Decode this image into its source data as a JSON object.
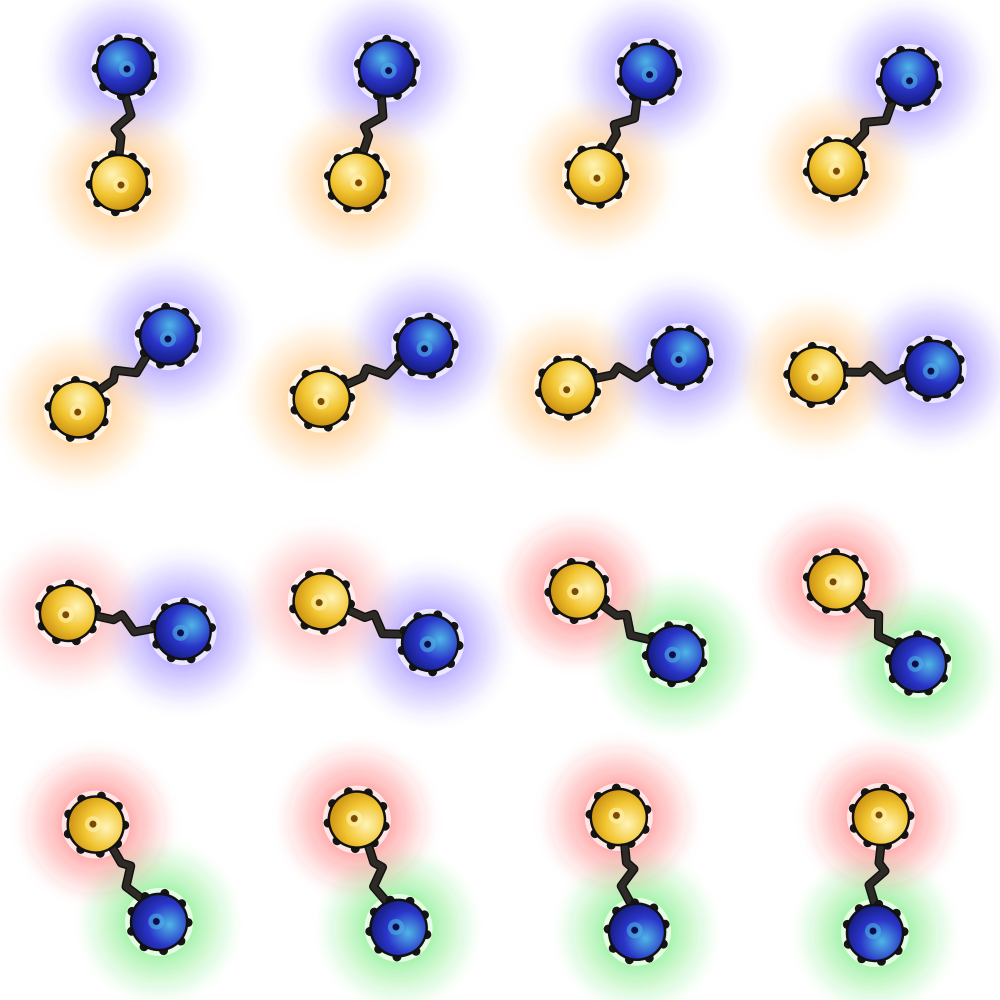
{
  "sheet": {
    "rows": 4,
    "columns": 4,
    "frame_count": 16,
    "background": "#ffffff"
  },
  "orbs": {
    "warm_orb": {
      "fill": "#f2c531",
      "highlight": "#fff4b8",
      "shade": "#c98e10",
      "core": "#7a4b00"
    },
    "cool_orb": {
      "fill": "#2a35c9",
      "highlight": "#4fb6e6",
      "shade": "#141a7a",
      "core": "#0d0f4d"
    },
    "spike_color": "#151515",
    "tether_color": "#2e2b27"
  },
  "glow_colors": {
    "warm_orange": "#ff9a1f",
    "cool_violet": "#5b3dff",
    "pink": "#ff7070",
    "red": "#ff2a2a",
    "green": "#22e02a"
  },
  "frames": [
    {
      "index": 1,
      "sprite": "dumbbell-orbs",
      "rotation_deg": 0,
      "warm_glow": "warm_orange",
      "cool_glow": "cool_violet"
    },
    {
      "index": 2,
      "sprite": "dumbbell-orbs",
      "rotation_deg": 12,
      "warm_glow": "warm_orange",
      "cool_glow": "cool_violet"
    },
    {
      "index": 3,
      "sprite": "dumbbell-orbs",
      "rotation_deg": 24,
      "warm_glow": "warm_orange",
      "cool_glow": "cool_violet"
    },
    {
      "index": 4,
      "sprite": "dumbbell-orbs",
      "rotation_deg": 36,
      "warm_glow": "warm_orange",
      "cool_glow": "cool_violet"
    },
    {
      "index": 5,
      "sprite": "dumbbell-orbs",
      "rotation_deg": 48,
      "warm_glow": "warm_orange",
      "cool_glow": "cool_violet"
    },
    {
      "index": 6,
      "sprite": "dumbbell-orbs",
      "rotation_deg": 60,
      "warm_glow": "warm_orange",
      "cool_glow": "cool_violet"
    },
    {
      "index": 7,
      "sprite": "dumbbell-orbs",
      "rotation_deg": 72,
      "warm_glow": "warm_orange",
      "cool_glow": "cool_violet"
    },
    {
      "index": 8,
      "sprite": "dumbbell-orbs",
      "rotation_deg": 84,
      "warm_glow": "warm_orange",
      "cool_glow": "cool_violet"
    },
    {
      "index": 9,
      "sprite": "dumbbell-orbs",
      "rotation_deg": 96,
      "warm_glow": "pink",
      "cool_glow": "cool_violet"
    },
    {
      "index": 10,
      "sprite": "dumbbell-orbs",
      "rotation_deg": 108,
      "warm_glow": "pink",
      "cool_glow": "cool_violet"
    },
    {
      "index": 11,
      "sprite": "dumbbell-orbs",
      "rotation_deg": 120,
      "warm_glow": "red",
      "cool_glow": "green"
    },
    {
      "index": 12,
      "sprite": "dumbbell-orbs",
      "rotation_deg": 132,
      "warm_glow": "red",
      "cool_glow": "green"
    },
    {
      "index": 13,
      "sprite": "dumbbell-orbs",
      "rotation_deg": 144,
      "warm_glow": "red",
      "cool_glow": "green"
    },
    {
      "index": 14,
      "sprite": "dumbbell-orbs",
      "rotation_deg": 156,
      "warm_glow": "red",
      "cool_glow": "green"
    },
    {
      "index": 15,
      "sprite": "dumbbell-orbs",
      "rotation_deg": 168,
      "warm_glow": "red",
      "cool_glow": "green"
    },
    {
      "index": 16,
      "sprite": "dumbbell-orbs",
      "rotation_deg": 180,
      "warm_glow": "red",
      "cool_glow": "green"
    }
  ]
}
